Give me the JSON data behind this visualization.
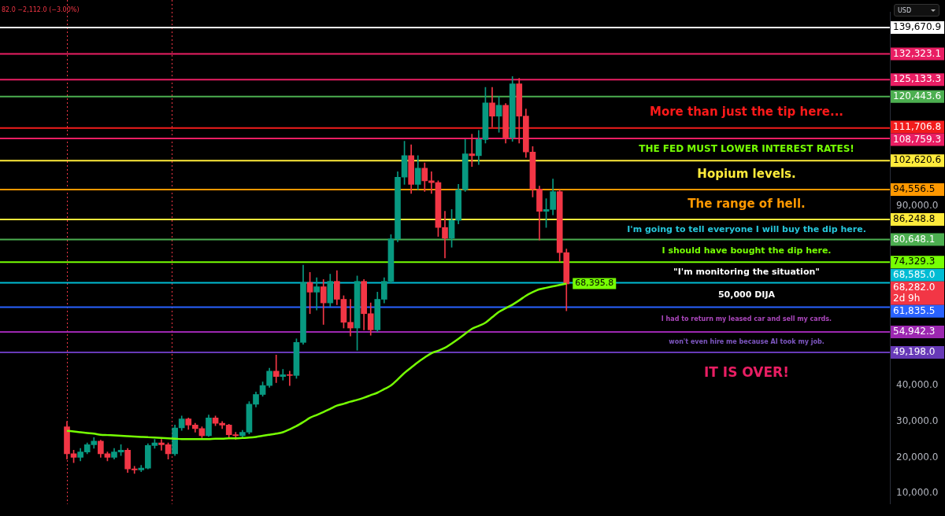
{
  "chart_data": {
    "type": "candlestick",
    "categories": [
      null,
      null,
      null,
      null,
      null,
      null,
      null,
      null,
      null,
      null,
      null,
      null,
      null,
      null,
      null,
      null,
      null,
      null,
      null,
      null,
      null,
      null,
      null,
      null,
      null,
      null,
      null,
      null,
      null,
      null,
      null,
      null,
      null,
      null,
      null,
      null,
      null,
      null,
      null,
      null,
      null,
      null,
      null,
      null,
      null,
      null,
      null,
      null,
      null,
      null,
      null,
      null,
      null,
      null,
      null,
      null,
      null,
      null,
      null,
      null,
      null,
      null,
      null,
      null,
      null,
      null,
      null,
      null,
      null,
      null,
      null,
      null,
      null,
      null,
      null
    ],
    "series": [
      {
        "ohlc": [
          [
            28500,
            30000,
            19500,
            21000
          ],
          [
            21000,
            22000,
            18500,
            20000
          ],
          [
            20000,
            22500,
            19000,
            21500
          ],
          [
            21500,
            24000,
            21000,
            23500
          ],
          [
            23500,
            25500,
            22500,
            24500
          ],
          [
            24500,
            24800,
            20000,
            21000
          ],
          [
            21000,
            21500,
            19000,
            20000
          ],
          [
            20000,
            22500,
            19500,
            21500
          ],
          [
            21500,
            23500,
            20500,
            22000
          ],
          [
            22000,
            22500,
            15800,
            16800
          ],
          [
            16800,
            17500,
            15500,
            16500
          ],
          [
            16500,
            17800,
            16000,
            17000
          ],
          [
            17000,
            23800,
            16800,
            23300
          ],
          [
            23300,
            25000,
            22500,
            24000
          ],
          [
            24000,
            25000,
            22000,
            23500
          ],
          [
            23500,
            24000,
            19500,
            21000
          ],
          [
            21000,
            29000,
            20500,
            28200
          ],
          [
            28200,
            31500,
            27500,
            30700
          ],
          [
            30700,
            31000,
            27800,
            29000
          ],
          [
            29000,
            29500,
            27000,
            28000
          ],
          [
            28000,
            28500,
            25500,
            26000
          ],
          [
            26000,
            31800,
            25800,
            31000
          ],
          [
            31000,
            31500,
            28800,
            29500
          ],
          [
            29500,
            30000,
            28000,
            29000
          ],
          [
            29000,
            29200,
            25500,
            26300
          ],
          [
            26300,
            27000,
            25000,
            26000
          ],
          [
            26000,
            27500,
            25500,
            27000
          ],
          [
            27000,
            35500,
            26500,
            34800
          ],
          [
            34800,
            38200,
            34000,
            37500
          ],
          [
            37500,
            41000,
            37000,
            40000
          ],
          [
            40000,
            44800,
            39500,
            44000
          ],
          [
            44000,
            48500,
            40800,
            42500
          ],
          [
            42500,
            44500,
            41500,
            43000
          ],
          [
            43000,
            44000,
            40000,
            42800
          ],
          [
            42800,
            53000,
            42000,
            52000
          ],
          [
            52000,
            73500,
            51500,
            68700
          ],
          [
            68700,
            71500,
            60000,
            66000
          ],
          [
            66000,
            70000,
            61000,
            67500
          ],
          [
            67500,
            69500,
            57000,
            63000
          ],
          [
            63000,
            71000,
            62000,
            69000
          ],
          [
            69000,
            72000,
            62500,
            64000
          ],
          [
            64000,
            65000,
            56000,
            57600
          ],
          [
            57600,
            64000,
            53800,
            56000
          ],
          [
            56000,
            70500,
            49800,
            69000
          ],
          [
            69000,
            69500,
            55500,
            60000
          ],
          [
            60000,
            63000,
            54000,
            55500
          ],
          [
            55500,
            66000,
            55000,
            64000
          ],
          [
            64000,
            70000,
            63000,
            69000
          ],
          [
            69000,
            82000,
            68500,
            80800
          ],
          [
            80800,
            99500,
            80000,
            98000
          ],
          [
            98000,
            108000,
            96000,
            104000
          ],
          [
            104000,
            107000,
            93500,
            96000
          ],
          [
            96000,
            104000,
            94500,
            100500
          ],
          [
            100500,
            102000,
            94000,
            97000
          ],
          [
            97000,
            99500,
            93500,
            96500
          ],
          [
            96500,
            97000,
            81500,
            84000
          ],
          [
            84000,
            88500,
            75500,
            81000
          ],
          [
            81000,
            89000,
            78500,
            86000
          ],
          [
            86000,
            96000,
            85000,
            94500
          ],
          [
            94500,
            108500,
            94000,
            104500
          ],
          [
            104500,
            110000,
            101000,
            104000
          ],
          [
            104000,
            111000,
            101500,
            108500
          ],
          [
            108500,
            123000,
            107500,
            118700
          ],
          [
            118700,
            123000,
            112000,
            115000
          ],
          [
            115000,
            120500,
            110500,
            118000
          ],
          [
            118000,
            118500,
            107500,
            109000
          ],
          [
            109000,
            126000,
            108000,
            124000
          ],
          [
            124000,
            125500,
            107500,
            115000
          ],
          [
            115000,
            117000,
            103500,
            105000
          ],
          [
            105000,
            106500,
            92500,
            94700
          ],
          [
            94700,
            95500,
            80500,
            88500
          ],
          [
            88500,
            92000,
            84000,
            89000
          ],
          [
            89000,
            97500,
            87500,
            94000
          ],
          [
            94000,
            94500,
            74500,
            77000
          ],
          [
            77000,
            78000,
            60800,
            68282
          ]
        ],
        "colors": [
          "#f23645",
          "#f23645",
          "#089981",
          "#089981",
          "#089981",
          "#f23645",
          "#f23645",
          "#089981",
          "#089981",
          "#f23645",
          "#f23645",
          "#089981",
          "#089981",
          "#089981",
          "#f23645",
          "#f23645",
          "#089981",
          "#089981",
          "#f23645",
          "#f23645",
          "#f23645",
          "#089981",
          "#f23645",
          "#f23645",
          "#f23645",
          "#f23645",
          "#089981",
          "#089981",
          "#089981",
          "#089981",
          "#089981",
          "#f23645",
          "#089981",
          "#f23645",
          "#089981",
          "#089981",
          "#f23645",
          "#089981",
          "#f23645",
          "#089981",
          "#f23645",
          "#f23645",
          "#f23645",
          "#089981",
          "#f23645",
          "#f23645",
          "#089981",
          "#089981",
          "#089981",
          "#089981",
          "#089981",
          "#f23645",
          "#089981",
          "#f23645",
          "#f23645",
          "#f23645",
          "#f23645",
          "#089981",
          "#089981",
          "#089981",
          "#f23645",
          "#089981",
          "#089981",
          "#f23645",
          "#089981",
          "#f23645",
          "#089981",
          "#f23645",
          "#f23645",
          "#f23645",
          "#f23645",
          "#089981",
          "#089981",
          "#f23645",
          "#f23645"
        ],
        "value_labels": [
          null,
          null,
          null,
          null,
          null,
          null,
          null,
          null,
          null,
          null,
          null,
          null,
          null,
          null,
          null,
          null,
          null,
          null,
          null,
          null,
          null,
          null,
          null,
          null,
          null,
          null,
          null,
          null,
          null,
          null,
          null,
          null,
          null,
          null,
          null,
          null,
          null,
          null,
          null,
          null,
          null,
          null,
          null,
          null,
          null,
          null,
          null,
          null,
          null,
          null,
          null,
          null,
          null,
          null,
          null,
          null,
          null,
          null,
          null,
          null,
          null,
          null,
          null,
          null,
          null,
          null,
          null,
          null,
          null,
          null,
          null,
          null,
          null,
          null,
          "68,282.0"
        ]
      },
      {
        "type": "line",
        "color": "#76ff03",
        "values": [
          27400,
          27200,
          27000,
          26800,
          26600,
          26300,
          26200,
          26100,
          26000,
          25900,
          25800,
          25700,
          25600,
          25500,
          25400,
          25300,
          25200,
          25100,
          25100,
          25100,
          25100,
          25100,
          25200,
          25200,
          25300,
          25300,
          25400,
          25500,
          25700,
          26000,
          26300,
          26600,
          27000,
          27800,
          28700,
          29800,
          31000,
          31800,
          32600,
          33500,
          34400,
          34900,
          35500,
          36000,
          36600,
          37300,
          38000,
          39000,
          40000,
          41700,
          43500,
          45000,
          46500,
          47800,
          49000,
          49700,
          50500,
          51700,
          53000,
          54400,
          55800,
          56600,
          57500,
          59000,
          60500,
          61500,
          62500,
          63700,
          65000,
          66000,
          66800,
          67200,
          67600,
          68000,
          68395.8
        ],
        "value_labels": [
          null,
          null,
          null,
          null,
          null,
          null,
          null,
          null,
          null,
          null,
          null,
          null,
          null,
          null,
          null,
          null,
          null,
          null,
          null,
          null,
          null,
          null,
          null,
          null,
          null,
          null,
          null,
          null,
          null,
          null,
          null,
          null,
          null,
          null,
          null,
          null,
          null,
          null,
          null,
          null,
          null,
          null,
          null,
          null,
          null,
          null,
          null,
          null,
          null,
          null,
          null,
          null,
          null,
          null,
          null,
          null,
          null,
          null,
          null,
          null,
          null,
          null,
          null,
          null,
          null,
          null,
          null,
          null,
          null,
          null,
          null,
          null,
          null,
          null,
          "68,395.8"
        ]
      }
    ],
    "marker": "none",
    "ylim": [
      7000,
      144000
    ],
    "yticks": [
      {
        "value": 10000,
        "label": "10,000.0"
      },
      {
        "value": 20000,
        "label": "20,000.0"
      },
      {
        "value": 30000,
        "label": "30,000.0"
      },
      {
        "value": 40000,
        "label": "40,000.0"
      },
      {
        "value": 90000,
        "label": "90,000.0"
      }
    ],
    "tick_labels": "y",
    "ref_lines": [
      {
        "axis": "y",
        "value": 139670.9,
        "label": "139,670.9",
        "color": "#ffffff"
      },
      {
        "axis": "y",
        "value": 132323.1,
        "label": "132,323.1",
        "color": "#e91e63"
      },
      {
        "axis": "y",
        "value": 125133.3,
        "label": "125,133.3",
        "color": "#e91e63"
      },
      {
        "axis": "y",
        "value": 120443.6,
        "label": "120,443.6",
        "color": "#4caf50"
      },
      {
        "axis": "y",
        "value": 111706.8,
        "label": "111,706.8",
        "color": "#f21c1c"
      },
      {
        "axis": "y",
        "value": 108759.3,
        "label": "108,759.3",
        "color": "#e91e63"
      },
      {
        "axis": "y",
        "value": 102620.6,
        "label": "102,620.6",
        "color": "#ffeb3b"
      },
      {
        "axis": "y",
        "value": 94556.5,
        "label": "94,556.5",
        "color": "#ff9800"
      },
      {
        "axis": "y",
        "value": 86248.8,
        "label": "86,248.8",
        "color": "#ffeb3b"
      },
      {
        "axis": "y",
        "value": 80648.1,
        "label": "80,648.1",
        "color": "#4caf50"
      },
      {
        "axis": "y",
        "value": 74329.3,
        "label": "74,329.3",
        "color": "#76ff03"
      },
      {
        "axis": "y",
        "value": 68585.0,
        "label": "68,585.0",
        "color": "#00bcd4"
      },
      {
        "axis": "y",
        "value": 61835.5,
        "label": "61,835.5",
        "color": "#2962ff"
      },
      {
        "axis": "y",
        "value": 54942.3,
        "label": "54,942.3",
        "color": "#9c27b0"
      },
      {
        "axis": "y",
        "value": 49198.0,
        "label": "49,198.0",
        "color": "#673ab7"
      }
    ],
    "annotations": [
      "82.0 −2,112.0 (−3.00%)",
      "USD",
      "2d 9h",
      "More than just the tip here...",
      "THE FED MUST LOWER INTEREST RATES!",
      "Hopium levels.",
      "The range of hell.",
      "I'm going to tell everyone I will buy the dip here.",
      "I should have bought the dip here.",
      "\"I'm monitoring the situation\"",
      "50,000 DIJA",
      "I had to return my leased car and sell my cards.",
      "won't even hire me because AI took my job.",
      "IT IS OVER!"
    ],
    "grid": false,
    "legend": false
  }
}
